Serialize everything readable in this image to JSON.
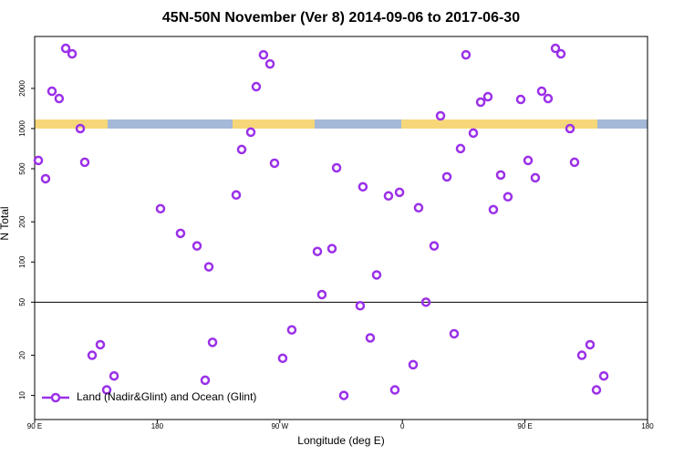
{
  "chart_data": {
    "type": "scatter",
    "title": "45N-50N November (Ver 8)   2014-09-06 to 2017-06-30",
    "x_label": "Longitude (deg E)",
    "y_label": "N Total",
    "log_y": true,
    "xlim": [
      90,
      540
    ],
    "ylim": [
      6.6,
      4900
    ],
    "xticks": [
      {
        "value": 90,
        "label": "90 E"
      },
      180,
      {
        "value": 270,
        "label": "90 W"
      },
      {
        "value": 360,
        "label": "0"
      },
      {
        "value": 450,
        "label": "90 E"
      },
      {
        "value": 540,
        "label": "180"
      }
    ],
    "yticks": [
      10,
      20,
      50,
      100,
      200,
      500,
      1000,
      2000
    ],
    "hline": 50,
    "legend": "lower left",
    "series": [
      {
        "name": "Land (Nadir&Glint) and Ocean (Glint)",
        "color": "#9b30e8",
        "x": [
          92.7,
          98,
          102.7,
          108,
          112.8,
          117.5,
          123.5,
          126.8,
          132.2,
          138.2,
          142.9,
          148.3,
          182.4,
          197.1,
          209.2,
          217.9,
          215.2,
          220.6,
          238,
          242,
          248.7,
          252.7,
          258,
          262.8,
          266.1,
          272.1,
          278.8,
          297.6,
          300.9,
          308.3,
          311.7,
          317,
          329,
          331,
          336.4,
          341.1,
          349.8,
          357.9,
          354.5,
          367.9,
          371.9,
          377.3,
          383.3,
          388,
          392.7,
          398,
          402.7,
          406.7,
          412.1,
          417.5,
          422.8,
          426.8,
          432.2,
          437.5,
          446.9,
          452.3,
          457.6,
          462.3,
          467,
          472.4,
          476.4,
          483.1,
          486.4,
          491.8,
          497.8,
          502.5,
          507.9
        ],
        "values": [
          577,
          421,
          1905,
          1679,
          3990,
          3630,
          1000,
          559,
          20,
          24,
          11,
          14,
          251,
          164,
          132,
          92,
          13,
          25,
          318,
          697,
          940,
          2060,
          3570,
          3050,
          550,
          19,
          31,
          120,
          57,
          126,
          508,
          10,
          47,
          366,
          27,
          80,
          313,
          333,
          11,
          17,
          255,
          50,
          132,
          1246,
          435,
          29,
          708,
          3570,
          925,
          1578,
          1733,
          247,
          449,
          308,
          1653,
          577,
          428,
          1905,
          1679,
          3990,
          3630,
          1000,
          559,
          20,
          24,
          11,
          14
        ]
      }
    ]
  }
}
